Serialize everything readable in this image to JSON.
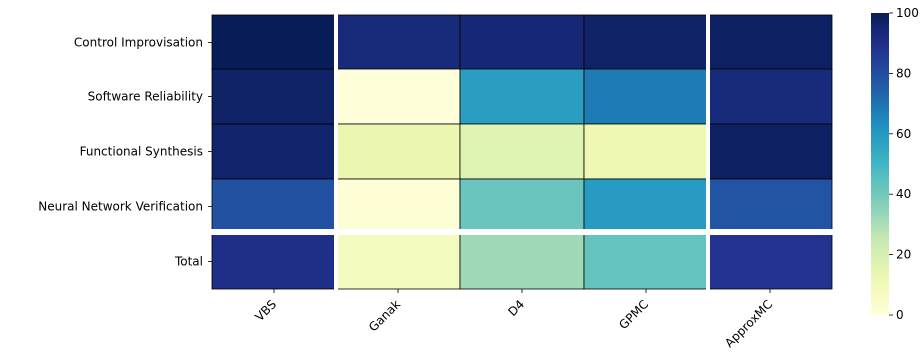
{
  "chart_data": {
    "type": "heatmap",
    "rows": [
      "Control Improvisation",
      "Software Reliability",
      "Functional Synthesis",
      "Neural Network Verification",
      "Total"
    ],
    "columns": [
      "VBS",
      "Ganak",
      "D4",
      "GPMC",
      "ApproxMC"
    ],
    "values": [
      [
        100,
        93,
        94,
        97,
        98
      ],
      [
        97,
        0,
        58,
        68,
        93
      ],
      [
        96,
        13,
        17,
        12,
        98
      ],
      [
        79,
        1,
        42,
        59,
        78
      ],
      [
        90,
        8,
        32,
        43,
        88
      ]
    ],
    "colorbar": {
      "range": [
        0,
        100
      ],
      "ticks": [
        "0",
        "20",
        "40",
        "60",
        "80",
        "100"
      ]
    },
    "colormap": "YlGnBu",
    "separators": {
      "after_column_index": [
        0,
        3
      ],
      "before_row_index": [
        4
      ]
    }
  }
}
